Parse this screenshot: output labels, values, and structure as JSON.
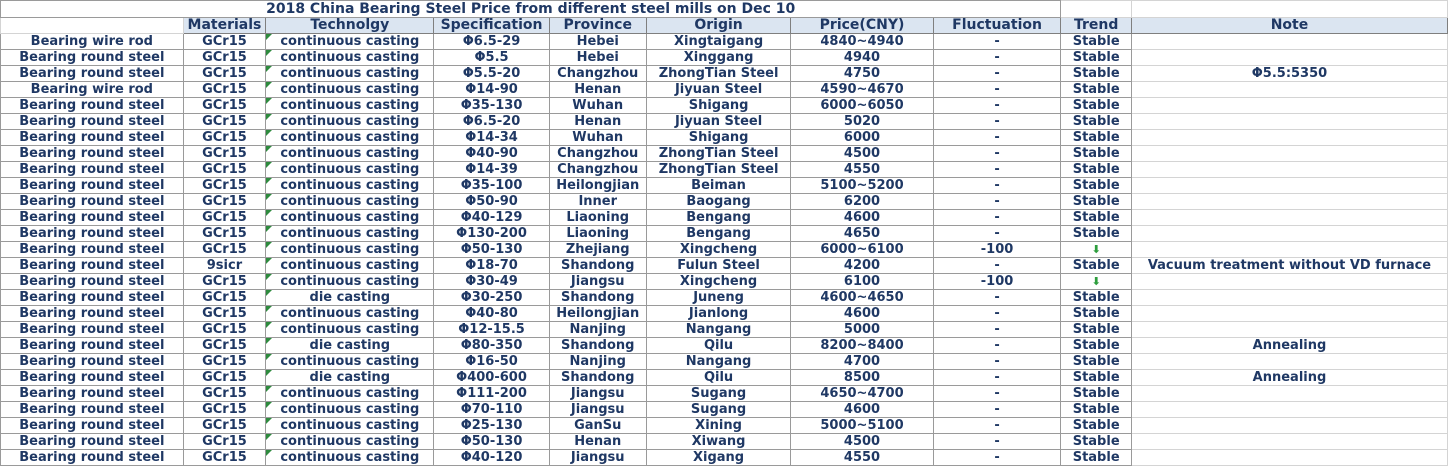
{
  "title": "2018 China Bearing Steel Price from different steel mills on Dec 10",
  "headers": [
    "Materials",
    "Technolgy",
    "Specification",
    "Province",
    "Origin",
    "Price(CNY)",
    "Fluctuation",
    "Trend",
    "Note"
  ],
  "colors": {
    "header_bg": "#dbe5f1",
    "text": "#1f3864",
    "down_arrow": "#2e9e3e",
    "cell_marker": "#2e8b3e"
  },
  "rows": [
    [
      "Bearing wire rod",
      "GCr15",
      "continuous casting",
      "Φ6.5-29",
      "Hebei",
      "Xingtaigang",
      "4840~4940",
      "-",
      "Stable",
      ""
    ],
    [
      "Bearing round steel",
      "GCr15",
      "continuous casting",
      "Φ5.5",
      "Hebei",
      "Xinggang",
      "4940",
      "-",
      "Stable",
      ""
    ],
    [
      "Bearing round steel",
      "GCr15",
      "continuous casting",
      "Φ5.5-20",
      "Changzhou",
      "ZhongTian Steel",
      "4750",
      "-",
      "Stable",
      "Φ5.5:5350"
    ],
    [
      "Bearing wire rod",
      "GCr15",
      "continuous casting",
      "Φ14-90",
      "Henan",
      "Jiyuan Steel",
      "4590~4670",
      "-",
      "Stable",
      ""
    ],
    [
      "Bearing round steel",
      "GCr15",
      "continuous casting",
      "Φ35-130",
      "Wuhan",
      "Shigang",
      "6000~6050",
      "-",
      "Stable",
      ""
    ],
    [
      "Bearing round steel",
      "GCr15",
      "continuous casting",
      "Φ6.5-20",
      "Henan",
      "Jiyuan Steel",
      "5020",
      "-",
      "Stable",
      ""
    ],
    [
      "Bearing round steel",
      "GCr15",
      "continuous casting",
      "Φ14-34",
      "Wuhan",
      "Shigang",
      "6000",
      "-",
      "Stable",
      ""
    ],
    [
      "Bearing round steel",
      "GCr15",
      "continuous casting",
      "Φ40-90",
      "Changzhou",
      "ZhongTian Steel",
      "4500",
      "-",
      "Stable",
      ""
    ],
    [
      "Bearing round steel",
      "GCr15",
      "continuous casting",
      "Φ14-39",
      "Changzhou",
      "ZhongTian Steel",
      "4550",
      "-",
      "Stable",
      ""
    ],
    [
      "Bearing round steel",
      "GCr15",
      "continuous casting",
      "Φ35-100",
      "Heilongjian",
      "Beiman",
      "5100~5200",
      "-",
      "Stable",
      ""
    ],
    [
      "Bearing round steel",
      "GCr15",
      "continuous casting",
      "Φ50-90",
      "Inner",
      "Baogang",
      "6200",
      "-",
      "Stable",
      ""
    ],
    [
      "Bearing round steel",
      "GCr15",
      "continuous casting",
      "Φ40-129",
      "Liaoning",
      "Bengang",
      "4600",
      "-",
      "Stable",
      ""
    ],
    [
      "Bearing round steel",
      "GCr15",
      "continuous casting",
      "Φ130-200",
      "Liaoning",
      "Bengang",
      "4650",
      "-",
      "Stable",
      ""
    ],
    [
      "Bearing round steel",
      "GCr15",
      "continuous casting",
      "Φ50-130",
      "Zhejiang",
      "Xingcheng",
      "6000~6100",
      "-100",
      "",
      ""
    ],
    [
      "Bearing round steel",
      "9sicr",
      "continuous casting",
      "Φ18-70",
      "Shandong",
      "Fulun Steel",
      "4200",
      "-",
      "Stable",
      "Vacuum treatment without VD furnace"
    ],
    [
      "Bearing round steel",
      "GCr15",
      "continuous casting",
      "Φ30-49",
      "Jiangsu",
      "Xingcheng",
      "6100",
      "-100",
      "",
      ""
    ],
    [
      "Bearing round steel",
      "GCr15",
      "die casting",
      "Φ30-250",
      "Shandong",
      "Juneng",
      "4600~4650",
      "-",
      "Stable",
      ""
    ],
    [
      "Bearing round steel",
      "GCr15",
      "continuous casting",
      "Φ40-80",
      "Heilongjian",
      "Jianlong",
      "4600",
      "-",
      "Stable",
      ""
    ],
    [
      "Bearing round steel",
      "GCr15",
      "continuous casting",
      "Φ12-15.5",
      "Nanjing",
      "Nangang",
      "5000",
      "-",
      "Stable",
      ""
    ],
    [
      "Bearing round steel",
      "GCr15",
      "die casting",
      "Φ80-350",
      "Shandong",
      "Qilu",
      "8200~8400",
      "-",
      "Stable",
      "Annealing"
    ],
    [
      "Bearing round steel",
      "GCr15",
      "continuous casting",
      "Φ16-50",
      "Nanjing",
      "Nangang",
      "4700",
      "-",
      "Stable",
      ""
    ],
    [
      "Bearing round steel",
      "GCr15",
      "die casting",
      "Φ400-600",
      "Shandong",
      "Qilu",
      "8500",
      "-",
      "Stable",
      "Annealing"
    ],
    [
      "Bearing round steel",
      "GCr15",
      "continuous casting",
      "Φ111-200",
      "Jiangsu",
      "Sugang",
      "4650~4700",
      "-",
      "Stable",
      ""
    ],
    [
      "Bearing round steel",
      "GCr15",
      "continuous casting",
      "Φ70-110",
      "Jiangsu",
      "Sugang",
      "4600",
      "-",
      "Stable",
      ""
    ],
    [
      "Bearing round steel",
      "GCr15",
      "continuous casting",
      "Φ25-130",
      "GanSu",
      "Xining",
      "5000~5100",
      "-",
      "Stable",
      ""
    ],
    [
      "Bearing round steel",
      "GCr15",
      "continuous casting",
      "Φ50-130",
      "Henan",
      "Xiwang",
      "4500",
      "-",
      "Stable",
      ""
    ],
    [
      "Bearing round steel",
      "GCr15",
      "continuous casting",
      "Φ40-120",
      "Jiangsu",
      "Xigang",
      "4550",
      "-",
      "Stable",
      ""
    ]
  ],
  "trend_icons": {
    "13": "down-arrow",
    "15": "down-arrow"
  }
}
